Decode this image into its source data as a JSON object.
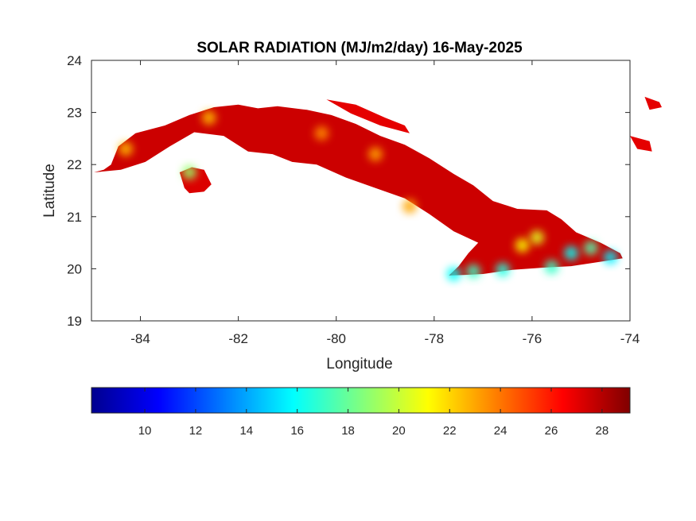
{
  "chart_data": {
    "type": "heatmap",
    "title": "SOLAR RADIATION (MJ/m2/day) 16-May-2025",
    "xlabel": "Longitude",
    "ylabel": "Latitude",
    "xlim": [
      -85,
      -74
    ],
    "ylim": [
      19,
      24
    ],
    "x_ticks": [
      -84,
      -82,
      -80,
      -78,
      -76,
      -74
    ],
    "y_ticks": [
      19,
      20,
      21,
      22,
      23,
      24
    ],
    "colorbar": {
      "colormap": "jet",
      "range": [
        7.9,
        29.1
      ],
      "ticks": [
        10,
        12,
        14,
        16,
        18,
        20,
        22,
        24,
        26,
        28
      ],
      "orientation": "horizontal"
    },
    "regions": [
      {
        "name": "main-island",
        "value": 27.5,
        "outline": [
          [
            -84.95,
            21.85
          ],
          [
            -84.75,
            21.9
          ],
          [
            -84.6,
            22.0
          ],
          [
            -84.45,
            22.35
          ],
          [
            -84.1,
            22.6
          ],
          [
            -83.5,
            22.75
          ],
          [
            -83.0,
            22.95
          ],
          [
            -82.5,
            23.1
          ],
          [
            -82.0,
            23.15
          ],
          [
            -81.6,
            23.08
          ],
          [
            -81.2,
            23.12
          ],
          [
            -80.6,
            23.05
          ],
          [
            -80.1,
            22.95
          ],
          [
            -79.6,
            22.78
          ],
          [
            -79.1,
            22.55
          ],
          [
            -78.6,
            22.38
          ],
          [
            -78.1,
            22.12
          ],
          [
            -77.6,
            21.82
          ],
          [
            -77.2,
            21.6
          ],
          [
            -76.8,
            21.3
          ],
          [
            -76.3,
            21.15
          ],
          [
            -75.7,
            21.12
          ],
          [
            -75.4,
            20.95
          ],
          [
            -75.1,
            20.7
          ],
          [
            -74.6,
            20.5
          ],
          [
            -74.2,
            20.3
          ],
          [
            -74.15,
            20.2
          ],
          [
            -74.5,
            20.15
          ],
          [
            -75.2,
            20.05
          ],
          [
            -75.8,
            20.02
          ],
          [
            -76.4,
            19.98
          ],
          [
            -77.0,
            19.9
          ],
          [
            -77.4,
            19.88
          ],
          [
            -77.7,
            19.87
          ],
          [
            -77.5,
            20.05
          ],
          [
            -77.3,
            20.3
          ],
          [
            -77.1,
            20.5
          ],
          [
            -77.6,
            20.72
          ],
          [
            -78.1,
            21.05
          ],
          [
            -78.6,
            21.35
          ],
          [
            -79.2,
            21.55
          ],
          [
            -79.8,
            21.75
          ],
          [
            -80.4,
            22.0
          ],
          [
            -80.9,
            22.05
          ],
          [
            -81.3,
            22.2
          ],
          [
            -81.8,
            22.25
          ],
          [
            -82.3,
            22.55
          ],
          [
            -82.9,
            22.62
          ],
          [
            -83.4,
            22.35
          ],
          [
            -83.9,
            22.05
          ],
          [
            -84.4,
            21.9
          ],
          [
            -84.95,
            21.85
          ]
        ]
      },
      {
        "name": "isla-de-la-juventud",
        "value": 27.2,
        "outline": [
          [
            -83.2,
            21.85
          ],
          [
            -82.95,
            21.95
          ],
          [
            -82.7,
            21.9
          ],
          [
            -82.55,
            21.62
          ],
          [
            -82.7,
            21.48
          ],
          [
            -83.0,
            21.45
          ],
          [
            -83.1,
            21.55
          ],
          [
            -83.2,
            21.85
          ]
        ]
      },
      {
        "name": "north-keys",
        "value": 27.0,
        "outline": [
          [
            -80.2,
            23.25
          ],
          [
            -79.6,
            23.15
          ],
          [
            -79.0,
            22.9
          ],
          [
            -78.6,
            22.75
          ],
          [
            -78.5,
            22.6
          ],
          [
            -79.1,
            22.75
          ],
          [
            -79.7,
            22.98
          ],
          [
            -80.2,
            23.25
          ]
        ]
      },
      {
        "name": "bahamas-inagua",
        "value": 27.0,
        "outline": [
          [
            -73.7,
            23.3
          ],
          [
            -73.4,
            23.2
          ],
          [
            -73.35,
            23.1
          ],
          [
            -73.6,
            23.05
          ],
          [
            -73.7,
            23.3
          ]
        ]
      },
      {
        "name": "bahamas-east",
        "value": 27.0,
        "outline": [
          [
            -74.0,
            22.55
          ],
          [
            -73.6,
            22.45
          ],
          [
            -73.55,
            22.25
          ],
          [
            -73.85,
            22.3
          ],
          [
            -74.0,
            22.55
          ]
        ]
      }
    ],
    "hotspots": [
      {
        "lon": -83.0,
        "lat": 21.85,
        "value": 19.0
      },
      {
        "lon": -84.3,
        "lat": 22.3,
        "value": 22.5
      },
      {
        "lon": -77.6,
        "lat": 19.9,
        "value": 16.0
      },
      {
        "lon": -77.2,
        "lat": 19.95,
        "value": 17.0
      },
      {
        "lon": -76.6,
        "lat": 19.98,
        "value": 16.5
      },
      {
        "lon": -75.6,
        "lat": 20.03,
        "value": 17.0
      },
      {
        "lon": -75.2,
        "lat": 20.3,
        "value": 16.0
      },
      {
        "lon": -74.8,
        "lat": 20.4,
        "value": 17.5
      },
      {
        "lon": -74.4,
        "lat": 20.22,
        "value": 15.5
      },
      {
        "lon": -75.9,
        "lat": 20.6,
        "value": 20.5
      },
      {
        "lon": -76.2,
        "lat": 20.45,
        "value": 21.0
      },
      {
        "lon": -78.5,
        "lat": 21.2,
        "value": 23.0
      },
      {
        "lon": -80.3,
        "lat": 22.6,
        "value": 23.5
      },
      {
        "lon": -82.6,
        "lat": 22.9,
        "value": 22.5
      },
      {
        "lon": -79.2,
        "lat": 22.2,
        "value": 23.0
      }
    ]
  }
}
